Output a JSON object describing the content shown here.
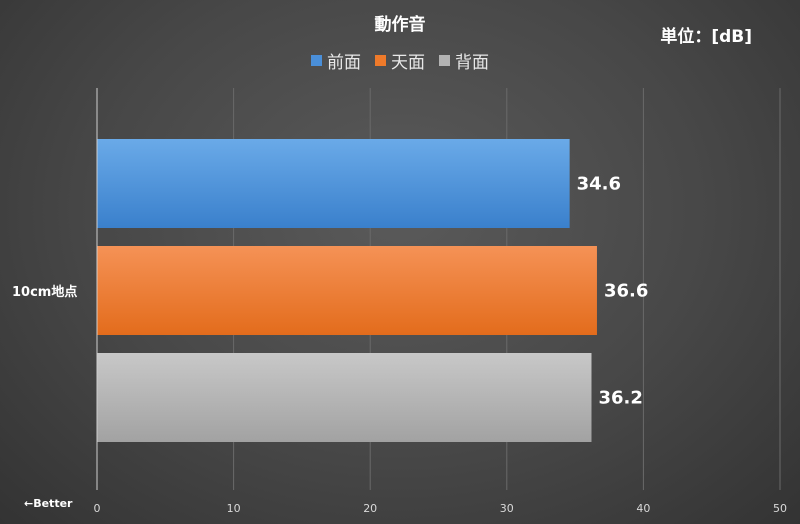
{
  "chart_data": {
    "type": "bar",
    "orientation": "horizontal",
    "title": "動作音",
    "unit_label": "単位：[dB]",
    "note": "←Better",
    "categories": [
      "10cm地点"
    ],
    "series": [
      {
        "name": "前面",
        "values": [
          34.6
        ],
        "color": "#4a8fd9"
      },
      {
        "name": "天面",
        "values": [
          36.6
        ],
        "color": "#ef7a2a"
      },
      {
        "name": "背面",
        "values": [
          36.2
        ],
        "color": "#b3b3b3"
      }
    ],
    "xlim": [
      0,
      50
    ],
    "x_ticks": [
      "0",
      "10",
      "20",
      "30",
      "40",
      "50"
    ],
    "grid": true,
    "legend_position": "top-center",
    "data_labels": [
      "34.6",
      "36.6",
      "36.2"
    ]
  }
}
